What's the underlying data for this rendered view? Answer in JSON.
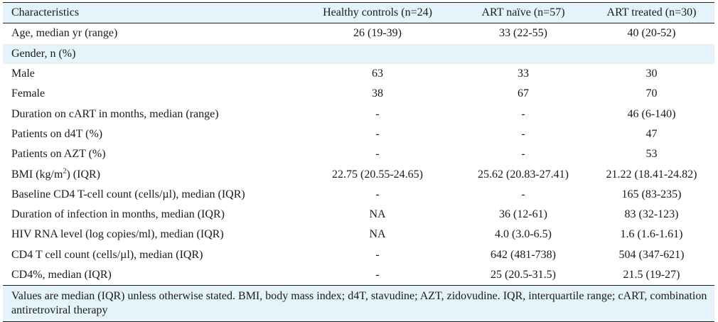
{
  "columns": [
    "Characteristics",
    "Healthy controls (n=24)",
    "ART naïve (n=57)",
    "ART treated (n=30)"
  ],
  "rows": [
    {
      "label": "Age, median yr (range)",
      "values": [
        "26 (19-39)",
        "33 (22-55)",
        "40 (20-52)"
      ]
    },
    {
      "label": "Gender, n (%)",
      "values": [
        "",
        "",
        ""
      ]
    },
    {
      "label": "Male",
      "values": [
        "63",
        "33",
        "30"
      ]
    },
    {
      "label": "Female",
      "values": [
        "38",
        "67",
        "70"
      ]
    },
    {
      "label": "Duration on cART in months, median (range)",
      "values": [
        "-",
        "-",
        "46 (6-140)"
      ]
    },
    {
      "label": "Patients on d4T (%)",
      "values": [
        "-",
        "-",
        "47"
      ]
    },
    {
      "label": "Patients on AZT (%)",
      "values": [
        "-",
        "-",
        "53"
      ]
    },
    {
      "label": "BMI (kg/m",
      "label_sup": "2",
      "label_suffix": ") (IQR)",
      "values": [
        "22.75 (20.55-24.65)",
        "25.62 (20.83-27.41)",
        "21.22 (18.41-24.82)"
      ]
    },
    {
      "label": "Baseline CD4 T-cell count (cells/µl), median (IQR)",
      "values": [
        "-",
        "-",
        "165 (83-235)"
      ]
    },
    {
      "label": "Duration of infection in months, median (IQR)",
      "values": [
        "NA",
        "36 (12-61)",
        "83 (32-123)"
      ]
    },
    {
      "label": "HIV RNA level (log copies/ml), median (IQR)",
      "values": [
        "NA",
        "4.0 (3.0-6.5)",
        "1.6 (1.6-1.61)"
      ]
    },
    {
      "label": "CD4 T cell count (cells/µl), median (IQR)",
      "values": [
        "-",
        "642 (481-738)",
        "504 (347-621)"
      ]
    },
    {
      "label": "CD4%, median (IQR)",
      "values": [
        "-",
        "25 (20.5-31.5)",
        "21.5 (19-27)"
      ]
    }
  ],
  "footnote": "Values are median (IQR) unless otherwise stated. BMI, body mass index; d4T, stavudine; AZT, zidovudine. IQR, interquartile range; cART, combination antiretroviral therapy"
}
